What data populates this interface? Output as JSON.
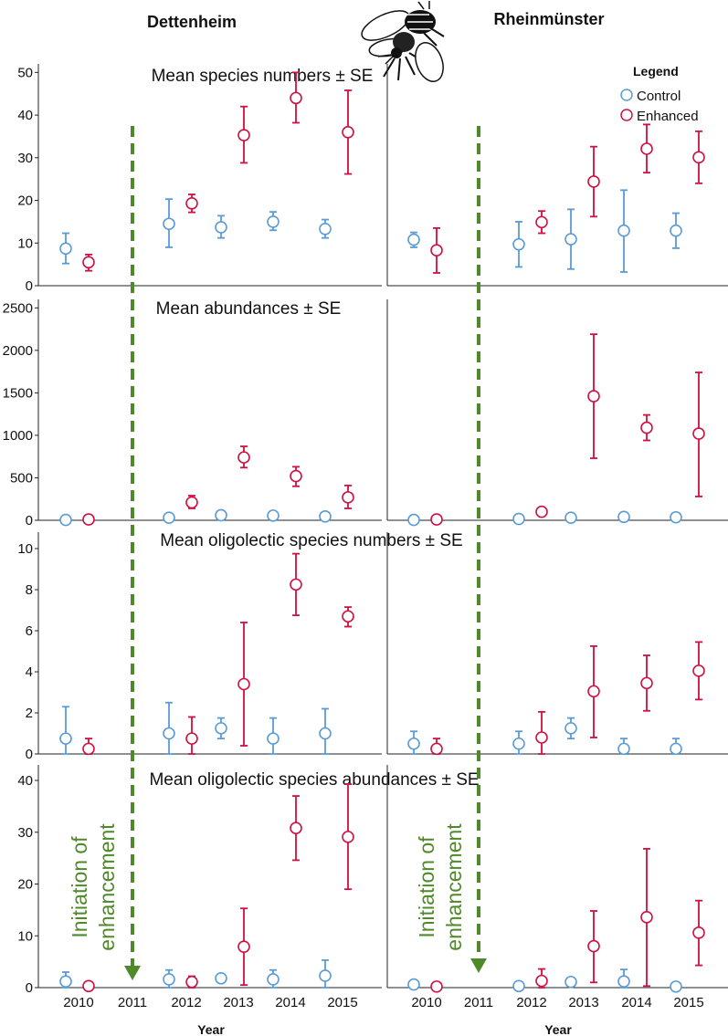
{
  "header": {
    "left_site": "Dettenheim",
    "right_site": "Rheinmünster",
    "logo": "bee-icon"
  },
  "legend": {
    "title": "Legend",
    "items": [
      {
        "label": "Control",
        "color": "#5b9bd5"
      },
      {
        "label": "Enhanced",
        "color": "#d0103f"
      }
    ]
  },
  "colors": {
    "control": "#5b9bd5",
    "enhanced": "#d0103f",
    "annotation": "#4f8a2a"
  },
  "x_axis": {
    "label": "Year",
    "ticks": [
      "2010",
      "2011",
      "2012",
      "2013",
      "2014",
      "2015"
    ],
    "tick_values": [
      2010,
      2011,
      2012,
      2013,
      2014,
      2015
    ]
  },
  "annotation": {
    "line1": "Initiation of",
    "line2": "enhancement",
    "year": 2011
  },
  "chart_data": [
    {
      "type": "scatter",
      "title": "Mean species numbers ± SE",
      "site": "Dettenheim",
      "xlabel": "Year",
      "ylabel": "",
      "ylim": [
        0,
        52
      ],
      "yticks": [
        "0",
        "10",
        "20",
        "30",
        "40",
        "50"
      ],
      "ytick_values": [
        0,
        10,
        20,
        30,
        40,
        50
      ],
      "series": [
        {
          "name": "Control",
          "x": [
            2010,
            2012,
            2013,
            2014,
            2015
          ],
          "y": [
            8.7,
            14.5,
            13.7,
            15,
            13.3
          ],
          "lo": [
            5.2,
            9,
            11.2,
            13,
            11.2
          ],
          "hi": [
            12.3,
            20.3,
            16.4,
            17.3,
            15.5
          ]
        },
        {
          "name": "Enhanced",
          "x": [
            2010,
            2012,
            2013,
            2014,
            2015
          ],
          "y": [
            5.5,
            19.3,
            35.3,
            44,
            36
          ],
          "lo": [
            3.5,
            17.2,
            28.8,
            38.2,
            26.2
          ],
          "hi": [
            7.3,
            21.4,
            42,
            50,
            45.8
          ]
        }
      ]
    },
    {
      "type": "scatter",
      "title": "",
      "site": "Rheinmünster",
      "xlabel": "Year",
      "ylabel": "",
      "ylim": [
        0,
        52
      ],
      "yticks": [],
      "ytick_values": [],
      "series": [
        {
          "name": "Control",
          "x": [
            2010,
            2012,
            2013,
            2014,
            2015
          ],
          "y": [
            10.8,
            9.7,
            10.9,
            12.9,
            12.9
          ],
          "lo": [
            9,
            4.4,
            3.9,
            3.2,
            8.8
          ],
          "hi": [
            12.5,
            15,
            17.9,
            22.4,
            17
          ]
        },
        {
          "name": "Enhanced",
          "x": [
            2010,
            2012,
            2013,
            2014,
            2015
          ],
          "y": [
            8.3,
            14.9,
            24.4,
            32.1,
            30.1
          ],
          "lo": [
            3,
            12.3,
            16.2,
            26.5,
            24
          ],
          "hi": [
            13.5,
            17.5,
            32.6,
            37.8,
            36.2
          ]
        }
      ]
    },
    {
      "type": "scatter",
      "title": "Mean abundances ± SE",
      "site": "Dettenheim",
      "xlabel": "Year",
      "ylabel": "",
      "ylim": [
        0,
        2600
      ],
      "yticks": [
        "0",
        "500",
        "1000",
        "1500",
        "2000",
        "2500"
      ],
      "ytick_values": [
        0,
        500,
        1000,
        1500,
        2000,
        2500
      ],
      "series": [
        {
          "name": "Control",
          "x": [
            2010,
            2012,
            2013,
            2014,
            2015
          ],
          "y": [
            5,
            30,
            60,
            55,
            45
          ],
          "lo": [
            0,
            10,
            30,
            30,
            15
          ],
          "hi": [
            15,
            60,
            100,
            95,
            90
          ]
        },
        {
          "name": "Enhanced",
          "x": [
            2010,
            2012,
            2013,
            2014,
            2015
          ],
          "y": [
            10,
            210,
            740,
            520,
            270
          ],
          "lo": [
            0,
            140,
            620,
            400,
            140
          ],
          "hi": [
            25,
            290,
            870,
            630,
            410
          ]
        }
      ]
    },
    {
      "type": "scatter",
      "title": "",
      "site": "Rheinmünster",
      "xlabel": "Year",
      "ylabel": "",
      "ylim": [
        0,
        2600
      ],
      "yticks": [],
      "ytick_values": [],
      "series": [
        {
          "name": "Control",
          "x": [
            2010,
            2012,
            2013,
            2014,
            2015
          ],
          "y": [
            5,
            15,
            30,
            40,
            35
          ],
          "lo": [
            0,
            0,
            5,
            5,
            5
          ],
          "hi": [
            15,
            40,
            60,
            90,
            70
          ]
        },
        {
          "name": "Enhanced",
          "x": [
            2010,
            2012,
            2013,
            2014,
            2015
          ],
          "y": [
            10,
            100,
            1460,
            1090,
            1020
          ],
          "lo": [
            0,
            55,
            730,
            940,
            280
          ],
          "hi": [
            25,
            145,
            2190,
            1240,
            1740
          ]
        }
      ]
    },
    {
      "type": "scatter",
      "title": "Mean oligolectic species numbers ± SE",
      "site": "Dettenheim",
      "xlabel": "Year",
      "ylabel": "",
      "ylim": [
        0,
        10.8
      ],
      "yticks": [
        "0",
        "2",
        "4",
        "6",
        "8",
        "10"
      ],
      "ytick_values": [
        0,
        2,
        4,
        6,
        8,
        10
      ],
      "series": [
        {
          "name": "Control",
          "x": [
            2010,
            2012,
            2013,
            2014,
            2015
          ],
          "y": [
            0.75,
            1,
            1.25,
            0.75,
            1
          ],
          "lo": [
            0,
            0,
            0.75,
            0,
            0
          ],
          "hi": [
            2.3,
            2.5,
            1.75,
            1.75,
            2.2
          ]
        },
        {
          "name": "Enhanced",
          "x": [
            2010,
            2012,
            2013,
            2014,
            2015
          ],
          "y": [
            0.25,
            0.75,
            3.4,
            8.25,
            6.7
          ],
          "lo": [
            0,
            0,
            0.4,
            6.75,
            6.2
          ],
          "hi": [
            0.75,
            1.8,
            6.4,
            9.75,
            7.15
          ]
        }
      ]
    },
    {
      "type": "scatter",
      "title": "",
      "site": "Rheinmünster",
      "xlabel": "Year",
      "ylabel": "",
      "ylim": [
        0,
        10.8
      ],
      "yticks": [],
      "ytick_values": [],
      "series": [
        {
          "name": "Control",
          "x": [
            2010,
            2012,
            2013,
            2014,
            2015
          ],
          "y": [
            0.5,
            0.5,
            1.25,
            0.25,
            0.25
          ],
          "lo": [
            0,
            0,
            0.75,
            0,
            0
          ],
          "hi": [
            1.1,
            1.1,
            1.75,
            0.75,
            0.75
          ]
        },
        {
          "name": "Enhanced",
          "x": [
            2010,
            2012,
            2013,
            2014,
            2015
          ],
          "y": [
            0.25,
            0.8,
            3.05,
            3.45,
            4.05
          ],
          "lo": [
            0,
            0,
            0.8,
            2.1,
            2.65
          ],
          "hi": [
            0.75,
            2.05,
            5.25,
            4.8,
            5.45
          ]
        }
      ]
    },
    {
      "type": "scatter",
      "title": "Mean oligolectic species abundances ± SE",
      "site": "Dettenheim",
      "xlabel": "Year",
      "ylabel": "",
      "ylim": [
        0,
        43
      ],
      "yticks": [
        "0",
        "10",
        "20",
        "30",
        "40"
      ],
      "ytick_values": [
        0,
        10,
        20,
        30,
        40
      ],
      "series": [
        {
          "name": "Control",
          "x": [
            2010,
            2012,
            2013,
            2014,
            2015
          ],
          "y": [
            1.2,
            1.6,
            1.8,
            1.6,
            2.3
          ],
          "lo": [
            0,
            0,
            1.1,
            0,
            0
          ],
          "hi": [
            3,
            3.4,
            2.5,
            3.4,
            5.3
          ]
        },
        {
          "name": "Enhanced",
          "x": [
            2010,
            2012,
            2013,
            2014,
            2015
          ],
          "y": [
            0.3,
            1.1,
            7.9,
            30.8,
            29.1
          ],
          "lo": [
            0,
            0,
            0.5,
            24.6,
            19
          ],
          "hi": [
            0.8,
            2.2,
            15.3,
            37,
            39.3
          ]
        }
      ]
    },
    {
      "type": "scatter",
      "title": "",
      "site": "Rheinmünster",
      "xlabel": "Year",
      "ylabel": "",
      "ylim": [
        0,
        43
      ],
      "yticks": [],
      "ytick_values": [],
      "series": [
        {
          "name": "Control",
          "x": [
            2010,
            2012,
            2013,
            2014,
            2015
          ],
          "y": [
            0.6,
            0.3,
            1.1,
            1.2,
            0.2
          ],
          "lo": [
            0,
            0,
            0.4,
            0,
            0
          ],
          "hi": [
            1.4,
            0.9,
            1.8,
            3.5,
            0.8
          ]
        },
        {
          "name": "Enhanced",
          "x": [
            2010,
            2012,
            2013,
            2014,
            2015
          ],
          "y": [
            0.2,
            1.3,
            8,
            13.6,
            10.6
          ],
          "lo": [
            0,
            0,
            1,
            0.3,
            4.3
          ],
          "hi": [
            0.7,
            3.6,
            14.8,
            26.8,
            16.8
          ]
        }
      ]
    }
  ]
}
